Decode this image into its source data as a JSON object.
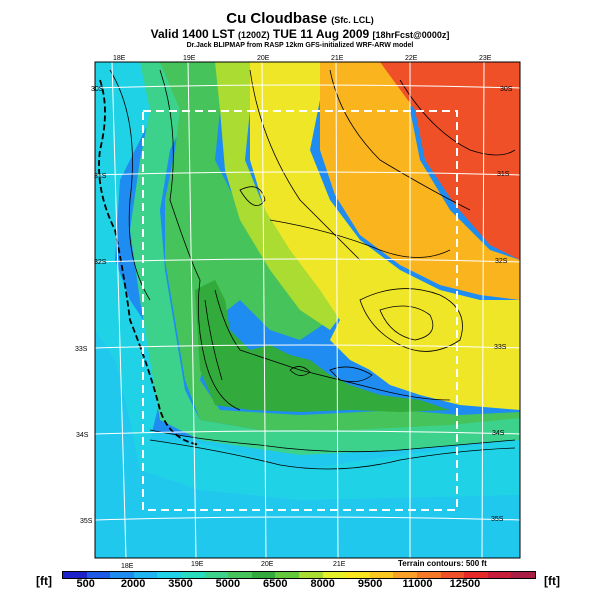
{
  "header": {
    "title": "Cu Cloudbase",
    "title_suffix": "(Sfc. LCL)",
    "valid": "Valid 1400 LST",
    "valid_code": "(1200Z)",
    "date": "TUE 11 Aug 2009",
    "forecast": "[18hrFcst@0000z]",
    "model_note": "Dr.Jack BLIPMAP from RASP 12km GFS-initialized WRF-ARW model"
  },
  "map": {
    "lon_labels_top": [
      "18E",
      "19E",
      "20E",
      "21E",
      "22E",
      "23E"
    ],
    "lon_labels_bottom": [
      "18E",
      "19E",
      "20E",
      "21E"
    ],
    "lat_labels_left": [
      "30S",
      "31S",
      "32S",
      "33S",
      "34S",
      "35S"
    ],
    "lat_labels_right": [
      "30S",
      "31S",
      "32S",
      "33S",
      "34S",
      "35S"
    ],
    "terrain_note": "Terrain contours: 500 ft"
  },
  "colorbar": {
    "unit_left": "[ft]",
    "unit_right": "[ft]",
    "tick_labels": [
      "500",
      "2000",
      "3500",
      "5000",
      "6500",
      "8000",
      "9500",
      "11000",
      "12500"
    ],
    "colors": [
      "#1e22c8",
      "#1e5ae6",
      "#1e8cf0",
      "#20b4f0",
      "#20d2e6",
      "#28dcbe",
      "#3cd28c",
      "#46c35a",
      "#32aa3c",
      "#64c83c",
      "#aadc32",
      "#e6f028",
      "#fae61e",
      "#fac81e",
      "#faa028",
      "#f57828",
      "#f05028",
      "#e62828",
      "#c81e3c",
      "#aa1e46"
    ]
  },
  "regions": [
    {
      "name": "ocean-west",
      "color": "#1e8cf0"
    },
    {
      "name": "ocean-south",
      "color": "#20c8ee"
    },
    {
      "name": "coastal-cyan",
      "color": "#20d2e6"
    },
    {
      "name": "teal-band",
      "color": "#3cd28c"
    },
    {
      "name": "green-zone",
      "color": "#46c35a"
    },
    {
      "name": "dark-green-zone",
      "color": "#32aa3c"
    },
    {
      "name": "light-green-zone",
      "color": "#aadc32"
    },
    {
      "name": "yellow-zone",
      "color": "#f0e628"
    },
    {
      "name": "orange-zone",
      "color": "#fab41e"
    },
    {
      "name": "red-zone",
      "color": "#f05028"
    }
  ]
}
